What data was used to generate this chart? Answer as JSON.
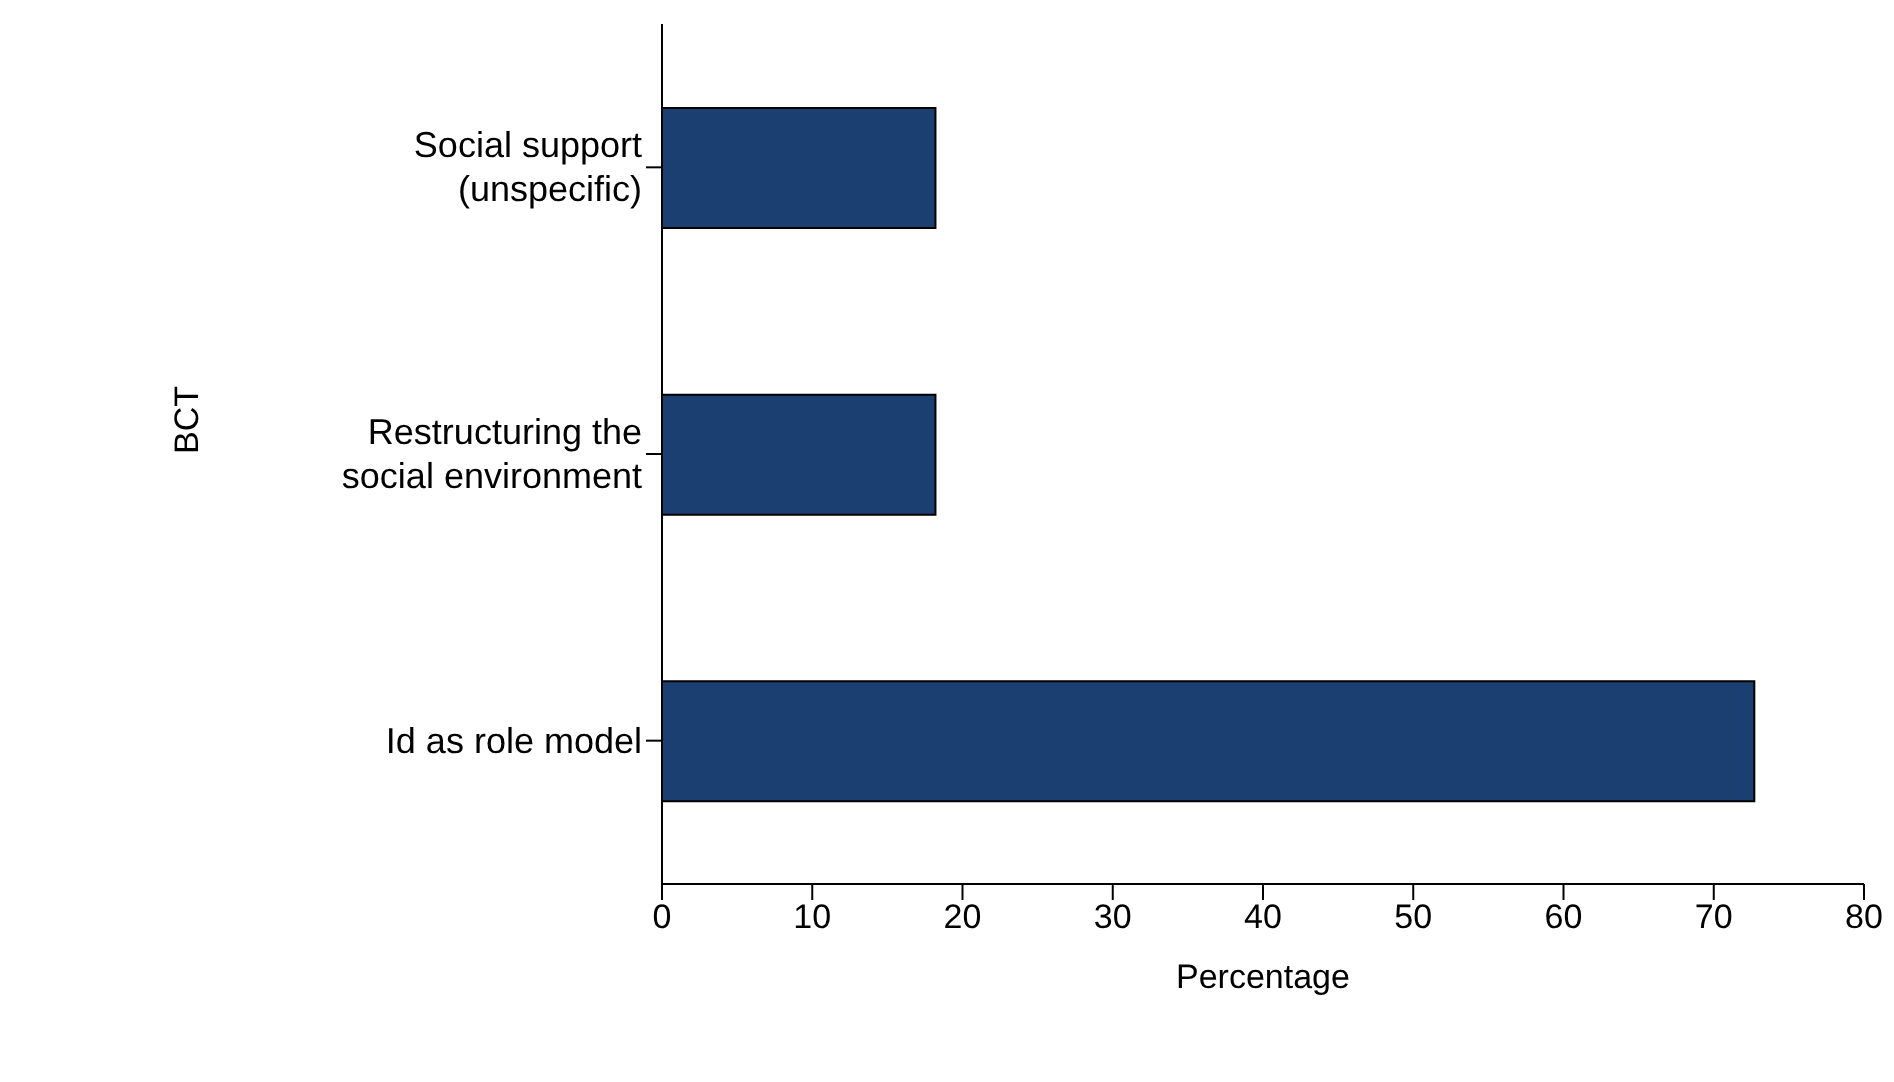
{
  "chart_data": {
    "type": "bar",
    "orientation": "horizontal",
    "categories": [
      "Social support (unspecific)",
      "Restructuring the social environment",
      "Id as role model"
    ],
    "values": [
      18.2,
      18.2,
      72.7
    ],
    "color": "#1c3f72",
    "xlim": [
      0,
      80
    ],
    "xticks": [
      0,
      10,
      20,
      30,
      40,
      50,
      60,
      70,
      80
    ],
    "xlabel": "Percentage",
    "ylabel": "BCT",
    "grid": false,
    "legend": false
  }
}
